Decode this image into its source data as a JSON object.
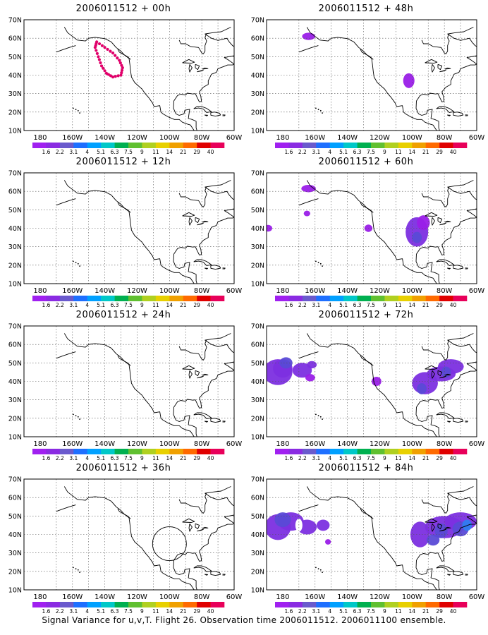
{
  "colorbar": {
    "labels": [
      "1.6",
      "2.2",
      "3.1",
      "4",
      "5.1",
      "6.3",
      "7.5",
      "9",
      "11",
      "14",
      "21",
      "29",
      "40"
    ],
    "colors": [
      "#a020f0",
      "#8a2be2",
      "#6a5acd",
      "#1e6fff",
      "#00a0ff",
      "#00c8c8",
      "#00b050",
      "#60c030",
      "#b0d020",
      "#e8d000",
      "#f0a000",
      "#ff6a00",
      "#e00000",
      "#e8005a"
    ]
  },
  "axes": {
    "y_labels": [
      "70N",
      "60N",
      "50N",
      "40N",
      "30N",
      "20N",
      "10N"
    ],
    "x_labels": [
      "180",
      "160W",
      "140W",
      "120W",
      "100W",
      "80W",
      "60W"
    ]
  },
  "panels": [
    {
      "id": "p00",
      "title": "2006011512 + 00h"
    },
    {
      "id": "p48",
      "title": "2006011512 + 48h"
    },
    {
      "id": "p12",
      "title": "2006011512 + 12h"
    },
    {
      "id": "p60",
      "title": "2006011512 + 60h"
    },
    {
      "id": "p24",
      "title": "2006011512 + 24h"
    },
    {
      "id": "p72",
      "title": "2006011512 + 72h"
    },
    {
      "id": "p36",
      "title": "2006011512 + 36h"
    },
    {
      "id": "p84",
      "title": "2006011512 + 84h"
    }
  ],
  "footer": "Signal Variance for u,v,T. Flight 26. Observation time 2006011512. 2006011100 ensemble."
}
